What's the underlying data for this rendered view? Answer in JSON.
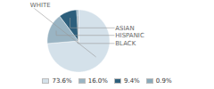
{
  "chart_data": {
    "type": "pie",
    "categories": [
      "WHITE",
      "HISPANIC",
      "ASIAN",
      "BLACK"
    ],
    "values": [
      73.6,
      16.0,
      9.4,
      0.9
    ],
    "value_labels": [
      "73.6%",
      "16.0%",
      "9.4%",
      "0.9%"
    ],
    "colors": [
      "#d4e1ea",
      "#9ab4c3",
      "#2d5f7c",
      "#8aaabb"
    ],
    "legend": "bottom"
  }
}
